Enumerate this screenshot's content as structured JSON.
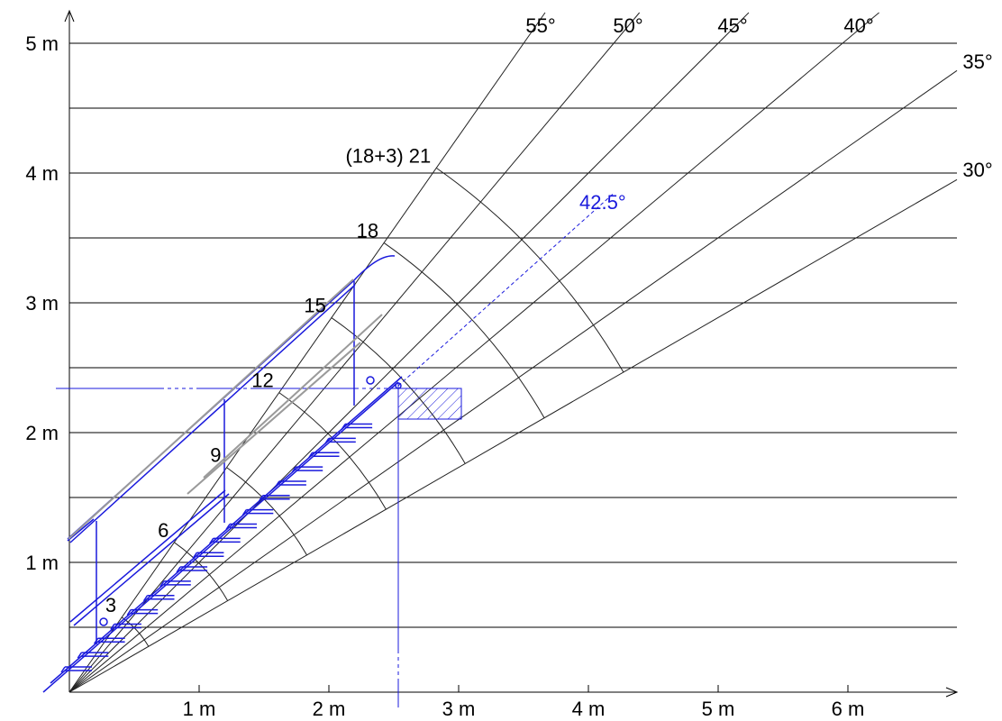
{
  "y_axis": {
    "ticks": [
      {
        "value": 1,
        "label": "1 m"
      },
      {
        "value": 2,
        "label": "2 m"
      },
      {
        "value": 3,
        "label": "3 m"
      },
      {
        "value": 4,
        "label": "4 m"
      },
      {
        "value": 5,
        "label": "5 m"
      }
    ],
    "half_lines": [
      0.5,
      1.5,
      2.5,
      3.5,
      4.5
    ]
  },
  "x_axis": {
    "ticks": [
      {
        "value": 1,
        "label": "1 m"
      },
      {
        "value": 2,
        "label": "2 m"
      },
      {
        "value": 3,
        "label": "3 m"
      },
      {
        "value": 4,
        "label": "4 m"
      },
      {
        "value": 5,
        "label": "5 m"
      },
      {
        "value": 6,
        "label": "6 m"
      }
    ]
  },
  "angles": [
    {
      "deg": 55,
      "label": "55°"
    },
    {
      "deg": 50,
      "label": "50°"
    },
    {
      "deg": 45,
      "label": "45°"
    },
    {
      "deg": 40,
      "label": "40°"
    },
    {
      "deg": 35,
      "label": "35°"
    },
    {
      "deg": 30,
      "label": "30°"
    }
  ],
  "step_counts": [
    {
      "count": 3,
      "label": "3"
    },
    {
      "count": 6,
      "label": "6"
    },
    {
      "count": 9,
      "label": "9"
    },
    {
      "count": 12,
      "label": "12"
    },
    {
      "count": 15,
      "label": "15"
    },
    {
      "count": 18,
      "label": "18"
    },
    {
      "count": 21,
      "label": "(18+3) 21"
    }
  ],
  "highlight": {
    "angle_deg": 42.5,
    "label": "42.5°",
    "color": "#1a1adc"
  }
}
